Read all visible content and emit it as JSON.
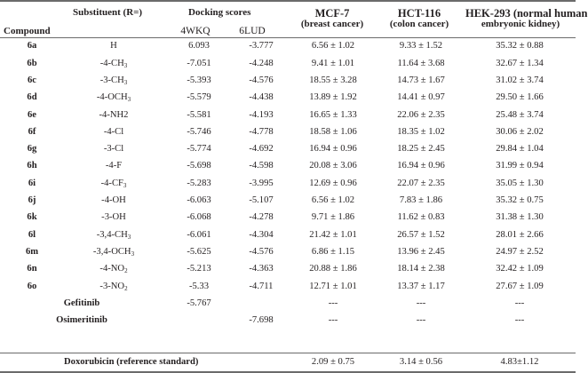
{
  "header": {
    "compound": "Compound",
    "substituent": "Substituent (R=)",
    "docking": "Docking scores",
    "dock_a": "4WKQ",
    "dock_b": "6LUD",
    "mcf_name": "MCF-7",
    "mcf_desc": "(breast cancer)",
    "hct_name": "HCT-116",
    "hct_desc": "(colon cancer)",
    "hek_line1": "HEK-293 (normal human",
    "hek_line2": "embryonic kidney)"
  },
  "rows": [
    {
      "compound": "6a",
      "sub": "H",
      "sub_num": "",
      "dock_a": "6.093",
      "dock_b": "-3.777",
      "mcf": "6.56 ± 1.02",
      "hct": "9.33 ± 1.52",
      "hek": "35.32 ± 0.88"
    },
    {
      "compound": "6b",
      "sub": "-4-CH",
      "sub_num": "3",
      "dock_a": "-7.051",
      "dock_b": "-4.248",
      "mcf": "9.41 ± 1.01",
      "hct": "11.64 ± 3.68",
      "hek": "32.67 ± 1.34"
    },
    {
      "compound": "6c",
      "sub": "-3-CH",
      "sub_num": "3",
      "dock_a": "-5.393",
      "dock_b": "-4.576",
      "mcf": "18.55 ± 3.28",
      "hct": "14.73 ± 1.67",
      "hek": "31.02 ± 3.74"
    },
    {
      "compound": "6d",
      "sub": "-4-OCH",
      "sub_num": "3",
      "dock_a": "-5.579",
      "dock_b": "-4.438",
      "mcf": "13.89 ± 1.92",
      "hct": "14.41 ± 0.97",
      "hek": "29.50 ± 1.66"
    },
    {
      "compound": "6e",
      "sub": "-4-NH2",
      "sub_num": "",
      "dock_a": "-5.581",
      "dock_b": "-4.193",
      "mcf": "16.65 ± 1.33",
      "hct": "22.06 ± 2.35",
      "hek": "25.48 ± 3.74"
    },
    {
      "compound": "6f",
      "sub": "-4-Cl",
      "sub_num": "",
      "dock_a": "-5.746",
      "dock_b": "-4.778",
      "mcf": "18.58 ± 1.06",
      "hct": "18.35 ± 1.02",
      "hek": "30.06 ± 2.02"
    },
    {
      "compound": "6g",
      "sub": "-3-Cl",
      "sub_num": "",
      "dock_a": "-5.774",
      "dock_b": "-4.692",
      "mcf": "16.94 ± 0.96",
      "hct": "18.25 ± 2.45",
      "hek": "29.84 ± 1.04"
    },
    {
      "compound": "6h",
      "sub": "-4-F",
      "sub_num": "",
      "dock_a": "-5.698",
      "dock_b": "-4.598",
      "mcf": "20.08 ± 3.06",
      "hct": "16.94 ± 0.96",
      "hek": "31.99 ± 0.94"
    },
    {
      "compound": "6i",
      "sub": "-4-CF",
      "sub_num": "3",
      "dock_a": "-5.283",
      "dock_b": "-3.995",
      "mcf": "12.69 ± 0.96",
      "hct": "22.07 ± 2.35",
      "hek": "35.05 ± 1.30"
    },
    {
      "compound": "6j",
      "sub": "-4-OH",
      "sub_num": "",
      "dock_a": "-6.063",
      "dock_b": "-5.107",
      "mcf": "6.56 ± 1.02",
      "hct": "7.83 ± 1.86",
      "hek": "35.32 ± 0.75"
    },
    {
      "compound": "6k",
      "sub": "-3-OH",
      "sub_num": "",
      "dock_a": "-6.068",
      "dock_b": "-4.278",
      "mcf": "9.71 ± 1.86",
      "hct": "11.62 ± 0.83",
      "hek": "31.38 ± 1.30"
    },
    {
      "compound": "6l",
      "sub": "-3,4-CH",
      "sub_num": "3",
      "dock_a": "-6.061",
      "dock_b": "-4.304",
      "mcf": "21.42 ± 1.01",
      "hct": "26.57 ± 1.52",
      "hek": "28.01 ± 2.66"
    },
    {
      "compound": "6m",
      "sub": "-3,4-OCH",
      "sub_num": "3",
      "dock_a": "-5.625",
      "dock_b": "-4.576",
      "mcf": "6.86 ± 1.15",
      "hct": "13.96 ± 2.45",
      "hek": "24.97 ± 2.52"
    },
    {
      "compound": "6n",
      "sub": "-4-NO",
      "sub_num": "2",
      "dock_a": "-5.213",
      "dock_b": "-4.363",
      "mcf": "20.88 ± 1.86",
      "hct": "18.14 ± 2.38",
      "hek": "32.42 ± 1.09"
    },
    {
      "compound": "6o",
      "sub": "-3-NO",
      "sub_num": "2",
      "dock_a": "-5.33",
      "dock_b": "-4.711",
      "mcf": "12.71 ± 1.01",
      "hct": "13.37 ± 1.17",
      "hek": "27.67 ± 1.09"
    }
  ],
  "controls": [
    {
      "name": "Gefitinib",
      "dock_a": "-5.767",
      "dock_b": "",
      "mcf": "---",
      "hct": "---",
      "hek": "---"
    },
    {
      "name": "Osimeritinib",
      "dock_a": "",
      "dock_b": "-7.698",
      "mcf": "---",
      "hct": "---",
      "hek": "---"
    }
  ],
  "footer": {
    "label": "Doxorubicin (reference standard)",
    "mcf": "2.09 ± 0.75",
    "hct": "3.14 ± 0.56",
    "hek": "4.83±1.12"
  }
}
